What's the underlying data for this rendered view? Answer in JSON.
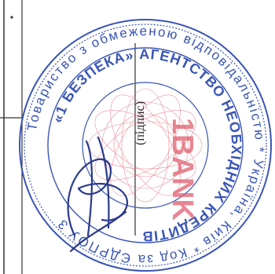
{
  "document": {
    "signature_caption": "(підпис)"
  },
  "seal": {
    "outer_text": "Товариство з обмеженою відповідальністю «1 БЕЗПЕКА АГЕНТСТВО НЕОБХІДНИХ КРЕДИТІВ» * Україна, Київ * Код за ЄДРПОУ 3",
    "inner_text": "1BANK",
    "color": "#3a55b5",
    "emblem_color": "#e06070"
  },
  "signature": {
    "color": "#2a3a8c"
  },
  "colors": {
    "line": "#333333",
    "background": "#ffffff"
  }
}
